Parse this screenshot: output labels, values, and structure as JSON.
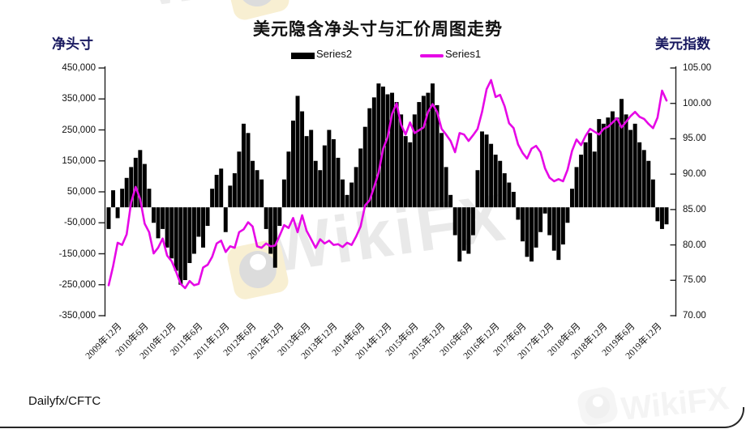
{
  "title": "美元隐含净头寸与汇价周图走势",
  "footer_source": "Dailyfx/CFTC",
  "watermark": {
    "text": "WikiFX"
  },
  "legend": [
    {
      "label": "Series2",
      "type": "bar",
      "color": "#000000"
    },
    {
      "label": "Series1",
      "type": "line",
      "color": "#e608e6"
    }
  ],
  "colors": {
    "bar_series": "#000000",
    "line_series": "#e608e6",
    "axis_line": "#222222",
    "axis_title_text": "#191960",
    "tick_text": "#111111"
  },
  "chart_data": {
    "type": "mixed",
    "title": "美元隐含净头寸与汇价周图走势",
    "x_start": "2009-12",
    "x_step_months": 1,
    "points": 125,
    "x_tick_labels": [
      "2009年12月",
      "2010年6月",
      "2010年12月",
      "2011年6月",
      "2011年12月",
      "2012年6月",
      "2012年12月",
      "2013年6月",
      "2013年12月",
      "2014年6月",
      "2014年12月",
      "2015年6月",
      "2015年12月",
      "2016年6月",
      "2016年12月",
      "2017年6月",
      "2017年12月",
      "2018年6月",
      "2018年12月",
      "2019年6月",
      "2019年12月"
    ],
    "left_axis": {
      "title": "净头寸",
      "min": -350000,
      "max": 450000,
      "tick_step": 100000,
      "tick_labels": [
        "450,000",
        "350,000",
        "250,000",
        "150,000",
        "50,000",
        "-50,000",
        "-150,000",
        "-250,000",
        "-350,000"
      ]
    },
    "right_axis": {
      "title": "美元指数",
      "min": 70,
      "max": 105,
      "tick_step": 5,
      "tick_labels": [
        "105.00",
        "100.00",
        "95.00",
        "90.00",
        "85.00",
        "80.00",
        "75.00",
        "70.00"
      ]
    },
    "series": [
      {
        "name": "Series2",
        "type": "bar",
        "axis": "left",
        "color": "#000000",
        "values": [
          -70000,
          55000,
          -35000,
          60000,
          95000,
          130000,
          160000,
          185000,
          140000,
          60000,
          -50000,
          -100000,
          -70000,
          -130000,
          -165000,
          -205000,
          -250000,
          -235000,
          -180000,
          -150000,
          -95000,
          -130000,
          -60000,
          60000,
          105000,
          125000,
          -80000,
          70000,
          110000,
          180000,
          270000,
          240000,
          150000,
          120000,
          90000,
          -70000,
          -150000,
          -195000,
          -60000,
          90000,
          180000,
          280000,
          360000,
          310000,
          230000,
          250000,
          150000,
          120000,
          200000,
          250000,
          220000,
          160000,
          90000,
          40000,
          80000,
          130000,
          190000,
          260000,
          320000,
          355000,
          400000,
          390000,
          365000,
          370000,
          340000,
          300000,
          230000,
          210000,
          300000,
          340000,
          360000,
          370000,
          400000,
          330000,
          240000,
          130000,
          40000,
          -90000,
          -175000,
          -140000,
          -150000,
          -90000,
          120000,
          245000,
          235000,
          205000,
          170000,
          150000,
          110000,
          80000,
          50000,
          -40000,
          -110000,
          -160000,
          -175000,
          -130000,
          -80000,
          -20000,
          -90000,
          -140000,
          -170000,
          -120000,
          -50000,
          60000,
          130000,
          170000,
          210000,
          240000,
          180000,
          285000,
          270000,
          290000,
          310000,
          290000,
          350000,
          300000,
          250000,
          270000,
          210000,
          185000,
          150000,
          90000,
          -45000,
          -70000,
          -55000
        ]
      },
      {
        "name": "Series1",
        "type": "line",
        "axis": "right",
        "color": "#e608e6",
        "values": [
          74.3,
          77.0,
          80.3,
          80.0,
          81.5,
          86.0,
          88.2,
          86.5,
          83.0,
          81.8,
          78.8,
          79.6,
          80.9,
          78.5,
          77.7,
          76.2,
          74.5,
          73.9,
          74.9,
          74.3,
          74.5,
          76.8,
          77.2,
          78.3,
          80.2,
          80.6,
          79.0,
          79.8,
          79.6,
          81.8,
          82.2,
          83.2,
          82.6,
          79.8,
          79.6,
          80.2,
          79.8,
          79.9,
          81.3,
          82.8,
          82.4,
          83.8,
          81.8,
          84.2,
          82.0,
          80.8,
          79.6,
          80.8,
          80.2,
          80.6,
          80.0,
          80.1,
          79.7,
          80.3,
          80.0,
          81.2,
          82.6,
          85.6,
          86.3,
          88.2,
          90.2,
          93.6,
          95.2,
          98.5,
          100.0,
          97.0,
          95.6,
          97.3,
          95.8,
          96.2,
          96.6,
          98.8,
          99.9,
          98.8,
          96.4,
          95.6,
          94.7,
          93.1,
          95.8,
          95.6,
          94.7,
          95.5,
          96.4,
          98.8,
          102.0,
          103.3,
          100.9,
          101.2,
          99.6,
          97.2,
          96.5,
          94.2,
          93.0,
          92.2,
          93.6,
          94.0,
          93.1,
          90.8,
          89.5,
          89.0,
          89.3,
          89.0,
          90.6,
          93.3,
          94.9,
          94.1,
          95.4,
          96.4,
          96.0,
          95.6,
          96.4,
          96.7,
          97.3,
          97.9,
          96.6,
          97.4,
          98.2,
          98.8,
          98.1,
          97.8,
          97.1,
          96.5,
          98.0,
          101.8,
          100.4
        ]
      }
    ],
    "legend_position": "top-center",
    "grid": false
  }
}
